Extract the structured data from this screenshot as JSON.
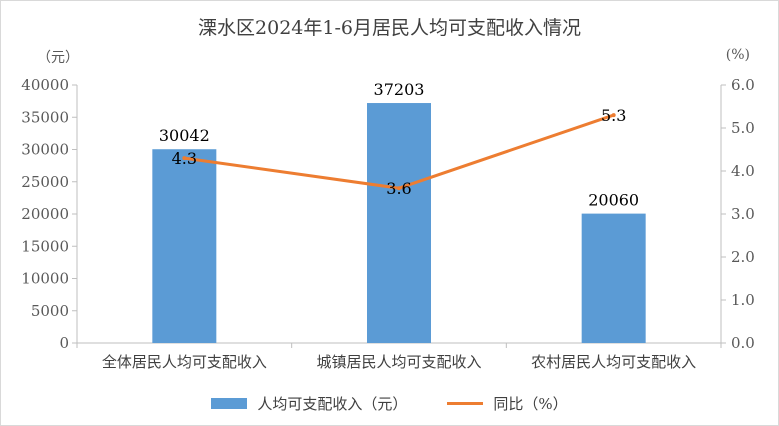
{
  "chart_data": {
    "type": "bar",
    "title": "溧水区2024年1-6月居民人均可支配收入情况",
    "left_unit": "（元）",
    "right_unit": "(%)",
    "categories": [
      "全体居民人均可支配收入",
      "城镇居民人均可支配收入",
      "农村居民人均可支配收入"
    ],
    "series": [
      {
        "name": "人均可支配收入（元）",
        "type": "bar",
        "axis": "left",
        "values": [
          30042,
          37203,
          20060
        ],
        "color": "#5b9bd5"
      },
      {
        "name": "同比（%）",
        "type": "line",
        "axis": "right",
        "values": [
          4.3,
          3.6,
          5.3
        ],
        "color": "#ed7d31"
      }
    ],
    "y_left": {
      "min": 0,
      "max": 40000,
      "ticks": [
        "0",
        "5000",
        "10000",
        "15000",
        "20000",
        "25000",
        "30000",
        "35000",
        "40000"
      ]
    },
    "y_right": {
      "min": 0,
      "max": 6,
      "ticks": [
        "0.0",
        "1.0",
        "2.0",
        "3.0",
        "4.0",
        "5.0",
        "6.0"
      ]
    },
    "grid": false,
    "legend": "bottom"
  }
}
